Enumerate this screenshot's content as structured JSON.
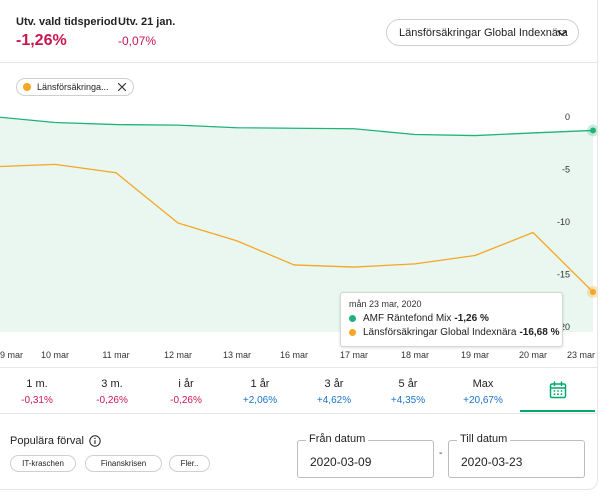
{
  "header": {
    "period_label": "Utv. vald tidsperiod",
    "period_value": "-1,26%",
    "day_label": "Utv. 21 jan.",
    "day_value": "-0,07%",
    "fund_selector": "Länsförsäkringar Global Indexnära"
  },
  "filter_chip": {
    "label": "Länsförsäkringa...",
    "color": "#f5a623"
  },
  "colors": {
    "green_series": "#1fb37a",
    "orange_series": "#f5a623",
    "negative": "#c8174f",
    "positive": "#1a73c8",
    "accent": "#00a86b"
  },
  "chart_data": {
    "type": "line",
    "x": [
      "9 mar",
      "10 mar",
      "11 mar",
      "12 mar",
      "13 mar",
      "16 mar",
      "17 mar",
      "18 mar",
      "19 mar",
      "20 mar",
      "23 mar"
    ],
    "series": [
      {
        "name": "AMF Räntefond Mix",
        "values": [
          0,
          -0.5,
          -0.7,
          -0.75,
          -1.0,
          -1.05,
          -1.1,
          -1.65,
          -1.75,
          -1.5,
          -1.26
        ]
      },
      {
        "name": "Länsförsäkringar Global Indexnära",
        "values": [
          -4.7,
          -4.5,
          -5.3,
          -10.1,
          -11.8,
          -14.1,
          -14.3,
          -14.0,
          -13.2,
          -11.0,
          -16.68
        ]
      }
    ],
    "yticks": [
      "0",
      "-5",
      "-10",
      "-15",
      "-20"
    ],
    "ylim": [
      -20.5,
      0.5
    ],
    "grid": false,
    "legend": "tooltip"
  },
  "tooltip": {
    "date": "mån 23 mar, 2020",
    "rows": [
      {
        "name": "AMF Räntefond Mix",
        "value": "-1,26 %"
      },
      {
        "name": "Länsförsäkringar Global Indexnära",
        "value": "-16,68 %"
      }
    ]
  },
  "periods": [
    {
      "label": "1 m.",
      "value": "-0,31%"
    },
    {
      "label": "3 m.",
      "value": "-0,26%"
    },
    {
      "label": "i år",
      "value": "-0,26%"
    },
    {
      "label": "1 år",
      "value": "+2,06%"
    },
    {
      "label": "3 år",
      "value": "+4,62%"
    },
    {
      "label": "5 år",
      "value": "+4,35%"
    },
    {
      "label": "Max",
      "value": "+20,67%"
    }
  ],
  "calendar_icon": "calendar-icon",
  "popular": {
    "label": "Populära förval",
    "chips": [
      "IT-kraschen",
      "Finanskrisen",
      "Fler.."
    ]
  },
  "dates": {
    "from_label": "Från datum",
    "from_value": "2020-03-09",
    "separator": "-",
    "to_label": "Till datum",
    "to_value": "2020-03-23"
  }
}
